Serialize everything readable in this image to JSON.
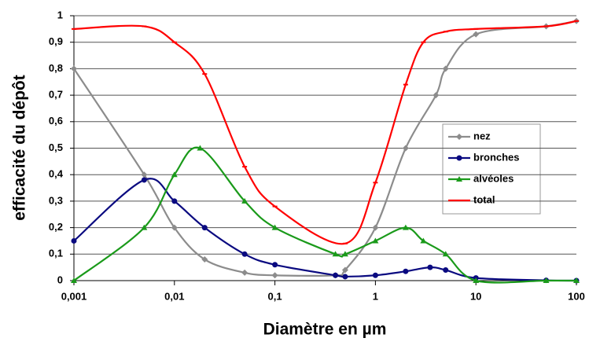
{
  "chart_data": {
    "type": "line",
    "x_title": "Diamètre en µm",
    "y_title": "efficacité du dépôt",
    "xscale": "log",
    "xlim": [
      0.001,
      100
    ],
    "xticks": [
      {
        "value": 0.001,
        "label": "0,001"
      },
      {
        "value": 0.01,
        "label": "0,01"
      },
      {
        "value": 0.1,
        "label": "0,1"
      },
      1,
      10,
      100
    ],
    "ylim": [
      0,
      1
    ],
    "yticks": [
      0,
      {
        "value": 0.1,
        "label": "0,1"
      },
      {
        "value": 0.2,
        "label": "0,2"
      },
      {
        "value": 0.3,
        "label": "0,3"
      },
      {
        "value": 0.4,
        "label": "0,4"
      },
      {
        "value": 0.5,
        "label": "0,5"
      },
      {
        "value": 0.6,
        "label": "0,6"
      },
      {
        "value": 0.7,
        "label": "0,7"
      },
      {
        "value": 0.8,
        "label": "0,8"
      },
      {
        "value": 0.9,
        "label": "0,9"
      },
      1
    ],
    "grid": true,
    "legend": "right",
    "series": [
      {
        "name": "nez",
        "color": "#8c8c8c",
        "marker": "diamond",
        "x": [
          0.001,
          0.005,
          0.01,
          0.02,
          0.05,
          0.1,
          0.4,
          0.5,
          1,
          2,
          4,
          5,
          10,
          50,
          100
        ],
        "values": [
          0.8,
          0.4,
          0.2,
          0.08,
          0.03,
          0.02,
          0.02,
          0.04,
          0.2,
          0.5,
          0.7,
          0.8,
          0.93,
          0.96,
          0.98
        ]
      },
      {
        "name": "bronches",
        "color": "#0a0a80",
        "marker": "circle",
        "x": [
          0.001,
          0.005,
          0.01,
          0.02,
          0.05,
          0.1,
          0.4,
          0.5,
          1,
          2,
          3.5,
          5,
          10,
          50,
          100
        ],
        "values": [
          0.15,
          0.38,
          0.3,
          0.2,
          0.1,
          0.06,
          0.02,
          0.015,
          0.02,
          0.035,
          0.05,
          0.04,
          0.01,
          0.001,
          0
        ]
      },
      {
        "name": "alvéoles",
        "color": "#1a9a1a",
        "marker": "triangle",
        "x": [
          0.001,
          0.005,
          0.01,
          0.018,
          0.05,
          0.1,
          0.4,
          0.5,
          1,
          2,
          3,
          5,
          10,
          50,
          100
        ],
        "values": [
          0,
          0.2,
          0.4,
          0.5,
          0.3,
          0.2,
          0.1,
          0.1,
          0.15,
          0.2,
          0.15,
          0.1,
          0,
          0,
          0
        ]
      },
      {
        "name": "total",
        "color": "#ff0000",
        "marker": "dash",
        "x": [
          0.001,
          0.005,
          0.01,
          0.02,
          0.05,
          0.1,
          0.5,
          1,
          2,
          3,
          5,
          10,
          50,
          100
        ],
        "values": [
          0.95,
          0.96,
          0.9,
          0.78,
          0.43,
          0.28,
          0.14,
          0.37,
          0.74,
          0.9,
          0.94,
          0.95,
          0.96,
          0.98
        ]
      }
    ]
  }
}
